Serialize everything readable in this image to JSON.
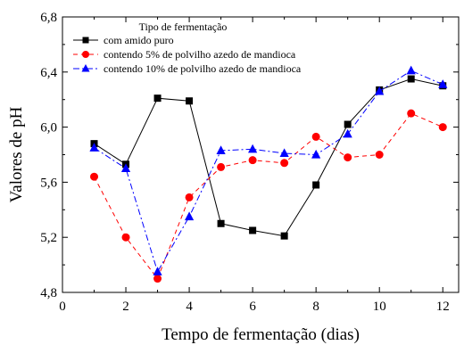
{
  "chart_data": {
    "type": "line",
    "xlabel": "Tempo de fermentação (dias)",
    "ylabel": "Valores de pH",
    "xlim": [
      0,
      12.5
    ],
    "ylim": [
      4.8,
      6.8
    ],
    "xticks": [
      0,
      2,
      4,
      6,
      8,
      10,
      12
    ],
    "yticks": [
      4.8,
      5.2,
      5.6,
      6.0,
      6.4,
      6.8
    ],
    "xtick_labels": [
      "0",
      "2",
      "4",
      "6",
      "8",
      "10",
      "12"
    ],
    "ytick_labels": [
      "4,8",
      "5,2",
      "5,6",
      "6,0",
      "6,4",
      "6,8"
    ],
    "grid": false,
    "legend_title": "Tipo de fermentação",
    "legend_position": "top-left",
    "x": [
      1,
      2,
      3,
      4,
      5,
      6,
      7,
      8,
      9,
      10,
      11,
      12
    ],
    "series": [
      {
        "name": "com amido puro",
        "color": "#000000",
        "marker": "square",
        "line_style": "solid",
        "values": [
          5.88,
          5.73,
          6.21,
          6.19,
          5.3,
          5.25,
          5.21,
          5.58,
          6.02,
          6.27,
          6.35,
          6.3
        ]
      },
      {
        "name": "contendo 5% de polvilho azedo de mandioca",
        "color": "#ff0000",
        "marker": "circle",
        "line_style": "dashed",
        "values": [
          5.64,
          5.2,
          4.9,
          5.49,
          5.71,
          5.76,
          5.74,
          5.93,
          5.78,
          5.8,
          6.1,
          6.0
        ]
      },
      {
        "name": "contendo 10% de polvilho azedo de mandioca",
        "color": "#0000ff",
        "marker": "triangle",
        "line_style": "dashdot",
        "values": [
          5.85,
          5.7,
          4.95,
          5.35,
          5.83,
          5.84,
          5.81,
          5.8,
          5.95,
          6.26,
          6.41,
          6.31
        ]
      }
    ]
  }
}
